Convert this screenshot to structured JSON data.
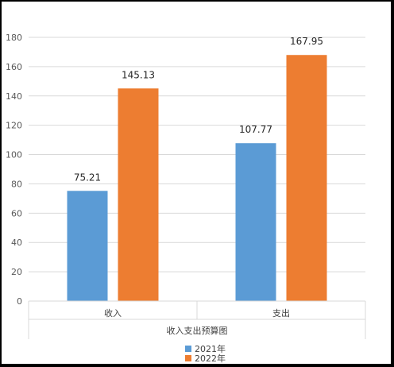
{
  "chart_data": {
    "type": "bar",
    "categories": [
      "收入",
      "支出"
    ],
    "series": [
      {
        "name": "2021年",
        "values": [
          75.21,
          107.77
        ],
        "color": "#5B9BD5"
      },
      {
        "name": "2022年",
        "values": [
          145.13,
          167.95
        ],
        "color": "#ED7D31"
      }
    ],
    "data_labels": [
      [
        "75.21",
        "107.77"
      ],
      [
        "145.13",
        "167.95"
      ]
    ],
    "xlabel": "收入支出预算图",
    "ylabel": "",
    "ylim": [
      0,
      180
    ],
    "yticks": [
      0,
      20,
      40,
      60,
      80,
      100,
      120,
      140,
      160,
      180
    ],
    "grid": true,
    "legend_position": "bottom"
  }
}
